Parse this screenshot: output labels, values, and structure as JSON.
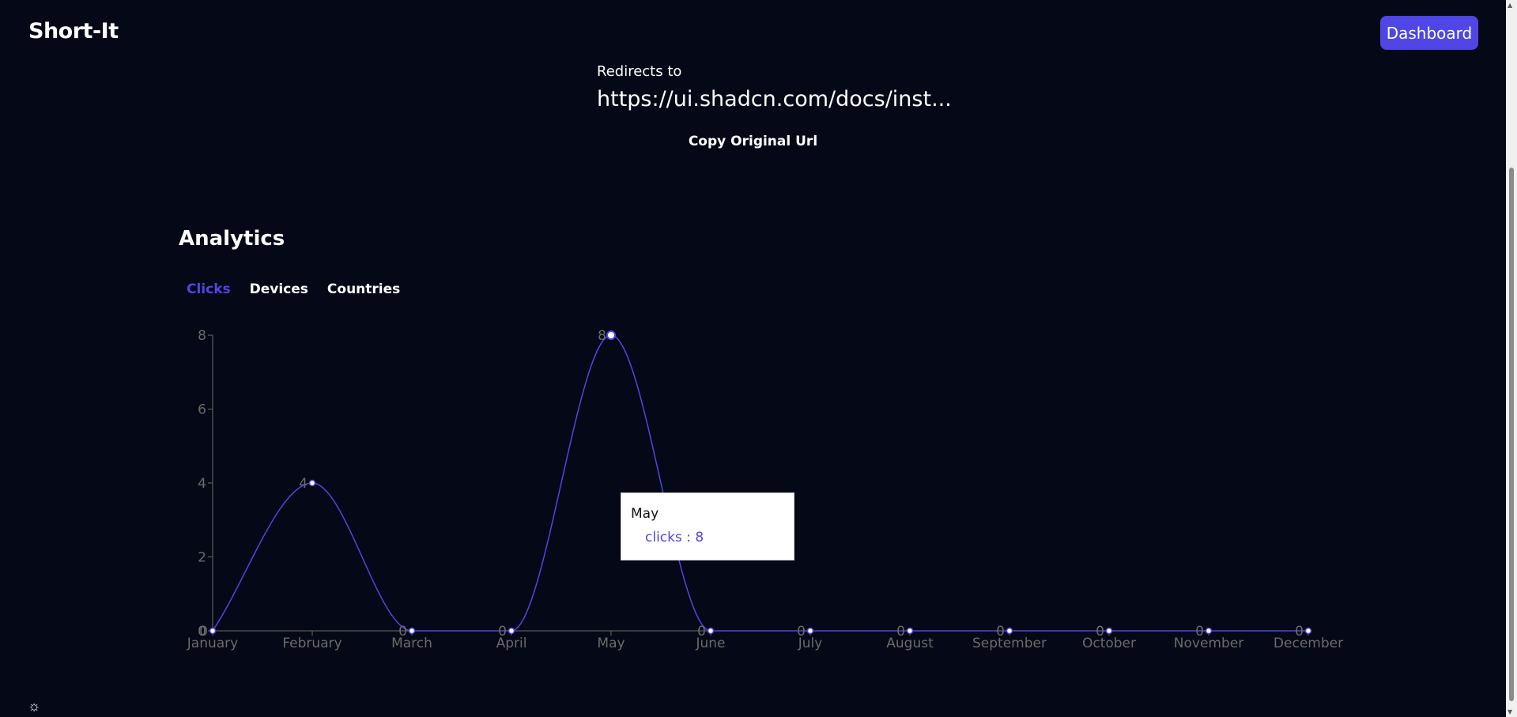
{
  "header": {
    "brand": "Short-It",
    "dashboard_label": "Dashboard"
  },
  "link": {
    "redirect_label": "Redirects to",
    "url_display": "https://ui.shadcn.com/docs/inst...",
    "copy_label": "Copy Original Url"
  },
  "analytics": {
    "title": "Analytics",
    "tabs": [
      {
        "label": "Clicks",
        "active": true
      },
      {
        "label": "Devices",
        "active": false
      },
      {
        "label": "Countries",
        "active": false
      }
    ]
  },
  "tooltip": {
    "label": "May",
    "value_text": "clicks : 8"
  },
  "colors": {
    "background": "#050816",
    "accent": "#4f46e5",
    "axis": "#6b6b6b"
  },
  "icons": {
    "theme_toggle": "sun-icon"
  },
  "chart_data": {
    "type": "line",
    "categories": [
      "January",
      "February",
      "March",
      "April",
      "May",
      "June",
      "July",
      "August",
      "September",
      "October",
      "November",
      "December"
    ],
    "series": [
      {
        "name": "clicks",
        "values": [
          0,
          4,
          0,
          0,
          8,
          0,
          0,
          0,
          0,
          0,
          0,
          0
        ]
      }
    ],
    "yticks": [
      0,
      2,
      4,
      6,
      8
    ],
    "ylim": [
      0,
      8
    ],
    "grid": false,
    "data_labels": true,
    "curve": "smooth"
  }
}
